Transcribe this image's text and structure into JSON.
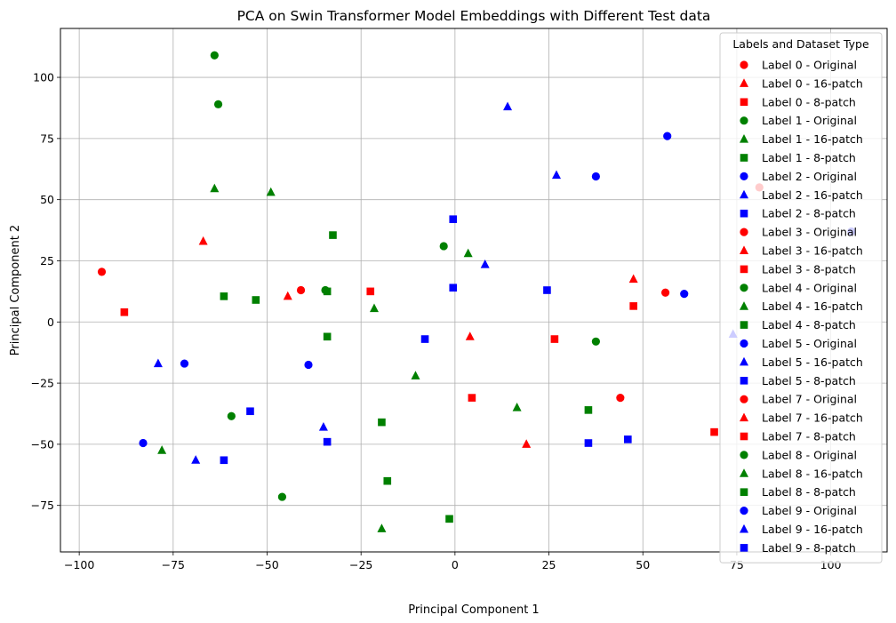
{
  "chart_data": {
    "type": "scatter",
    "title": "PCA on Swin Transformer Model Embeddings with Different Test data",
    "xlabel": "Principal Component 1",
    "ylabel": "Principal Component 2",
    "xlim": [
      -105,
      115
    ],
    "ylim": [
      -94,
      120
    ],
    "xticks": [
      -100,
      -75,
      -50,
      -25,
      0,
      25,
      50,
      75,
      100
    ],
    "yticks": [
      -75,
      -50,
      -25,
      0,
      25,
      50,
      75,
      100
    ],
    "grid": true,
    "legend": {
      "title": "Labels and Dataset Type",
      "placement": "right"
    },
    "colors": {
      "Label 0": "#ff0000",
      "Label 1": "#008000",
      "Label 2": "#0000ff",
      "Label 3": "#ff0000",
      "Label 4": "#008000",
      "Label 5": "#0000ff",
      "Label 7": "#ff0000",
      "Label 8": "#008000",
      "Label 9": "#0000ff"
    },
    "series": [
      {
        "name": "Label 0 - Original",
        "color": "#ff0000",
        "marker": "circle",
        "points": [
          [
            -94,
            20.5
          ],
          [
            81,
            55
          ]
        ]
      },
      {
        "name": "Label 0 - 16-patch",
        "color": "#ff0000",
        "marker": "triangle",
        "points": [
          [
            -67,
            33
          ],
          [
            47.5,
            17.5
          ]
        ]
      },
      {
        "name": "Label 0 - 8-patch",
        "color": "#ff0000",
        "marker": "square",
        "points": [
          [
            -88,
            4
          ],
          [
            47.5,
            6.5
          ]
        ]
      },
      {
        "name": "Label 1 - Original",
        "color": "#008000",
        "marker": "circle",
        "points": [
          [
            -64,
            109
          ],
          [
            -63,
            89
          ]
        ]
      },
      {
        "name": "Label 1 - 16-patch",
        "color": "#008000",
        "marker": "triangle",
        "points": [
          [
            -64,
            54.5
          ],
          [
            -49,
            53
          ]
        ]
      },
      {
        "name": "Label 1 - 8-patch",
        "color": "#008000",
        "marker": "square",
        "points": [
          [
            -32.5,
            35.5
          ],
          [
            -61.5,
            10.5
          ]
        ]
      },
      {
        "name": "Label 2 - Original",
        "color": "#0000ff",
        "marker": "circle",
        "points": [
          [
            37.5,
            59.5
          ],
          [
            56.5,
            76
          ]
        ]
      },
      {
        "name": "Label 2 - 16-patch",
        "color": "#0000ff",
        "marker": "triangle",
        "points": [
          [
            14,
            88
          ],
          [
            27,
            60
          ]
        ]
      },
      {
        "name": "Label 2 - 8-patch",
        "color": "#0000ff",
        "marker": "square",
        "points": [
          [
            -0.5,
            42
          ],
          [
            -0.5,
            14
          ]
        ]
      },
      {
        "name": "Label 3 - Original",
        "color": "#ff0000",
        "marker": "circle",
        "points": [
          [
            -41,
            13
          ],
          [
            56,
            12
          ]
        ]
      },
      {
        "name": "Label 3 - 16-patch",
        "color": "#ff0000",
        "marker": "triangle",
        "points": [
          [
            -44.5,
            10.5
          ],
          [
            4,
            -6
          ]
        ]
      },
      {
        "name": "Label 3 - 8-patch",
        "color": "#ff0000",
        "marker": "square",
        "points": [
          [
            -22.5,
            12.5
          ],
          [
            26.5,
            -7
          ]
        ]
      },
      {
        "name": "Label 4 - Original",
        "color": "#008000",
        "marker": "circle",
        "points": [
          [
            -3,
            31
          ],
          [
            -34.5,
            13
          ],
          [
            37.5,
            -8
          ]
        ]
      },
      {
        "name": "Label 4 - 16-patch",
        "color": "#008000",
        "marker": "triangle",
        "points": [
          [
            3.5,
            28
          ],
          [
            -21.5,
            5.5
          ]
        ]
      },
      {
        "name": "Label 4 - 8-patch",
        "color": "#008000",
        "marker": "square",
        "points": [
          [
            -53,
            9
          ],
          [
            -34,
            12.5
          ],
          [
            -34,
            -6
          ]
        ]
      },
      {
        "name": "Label 5 - Original",
        "color": "#0000ff",
        "marker": "circle",
        "points": [
          [
            61,
            11.5
          ],
          [
            -72,
            -17
          ],
          [
            -39,
            -17.5
          ]
        ]
      },
      {
        "name": "Label 5 - 16-patch",
        "color": "#0000ff",
        "marker": "triangle",
        "points": [
          [
            8,
            23.5
          ],
          [
            -79,
            -17
          ],
          [
            -35,
            -43
          ]
        ]
      },
      {
        "name": "Label 5 - 8-patch",
        "color": "#0000ff",
        "marker": "square",
        "points": [
          [
            24.5,
            13
          ],
          [
            -8,
            -7
          ],
          [
            -34,
            -49
          ]
        ]
      },
      {
        "name": "Label 7 - Original",
        "color": "#ff0000",
        "marker": "circle",
        "points": [
          [
            44,
            -31
          ]
        ]
      },
      {
        "name": "Label 7 - 16-patch",
        "color": "#ff0000",
        "marker": "triangle",
        "points": [
          [
            19,
            -50
          ]
        ]
      },
      {
        "name": "Label 7 - 8-patch",
        "color": "#ff0000",
        "marker": "square",
        "points": [
          [
            4.5,
            -31
          ],
          [
            69,
            -45
          ]
        ]
      },
      {
        "name": "Label 8 - Original",
        "color": "#008000",
        "marker": "circle",
        "points": [
          [
            -59.5,
            -38.5
          ],
          [
            -46,
            -71.5
          ]
        ]
      },
      {
        "name": "Label 8 - 16-patch",
        "color": "#008000",
        "marker": "triangle",
        "points": [
          [
            -10.5,
            -22
          ],
          [
            16.5,
            -35
          ],
          [
            -78,
            -52.5
          ],
          [
            -19.5,
            -84.5
          ]
        ]
      },
      {
        "name": "Label 8 - 8-patch",
        "color": "#008000",
        "marker": "square",
        "points": [
          [
            -19.5,
            -41
          ],
          [
            35.5,
            -36
          ],
          [
            -18,
            -65
          ],
          [
            -1.5,
            -80.5
          ]
        ]
      },
      {
        "name": "Label 9 - Original",
        "color": "#0000ff",
        "marker": "circle",
        "points": [
          [
            -83,
            -49.5
          ],
          [
            105.5,
            37
          ]
        ]
      },
      {
        "name": "Label 9 - 16-patch",
        "color": "#0000ff",
        "marker": "triangle",
        "points": [
          [
            -69,
            -56.5
          ],
          [
            74,
            -5
          ]
        ]
      },
      {
        "name": "Label 9 - 8-patch",
        "color": "#0000ff",
        "marker": "square",
        "points": [
          [
            -54.5,
            -36.5
          ],
          [
            -61.5,
            -56.5
          ],
          [
            35.5,
            -49.5
          ],
          [
            46,
            -48
          ]
        ]
      }
    ]
  }
}
